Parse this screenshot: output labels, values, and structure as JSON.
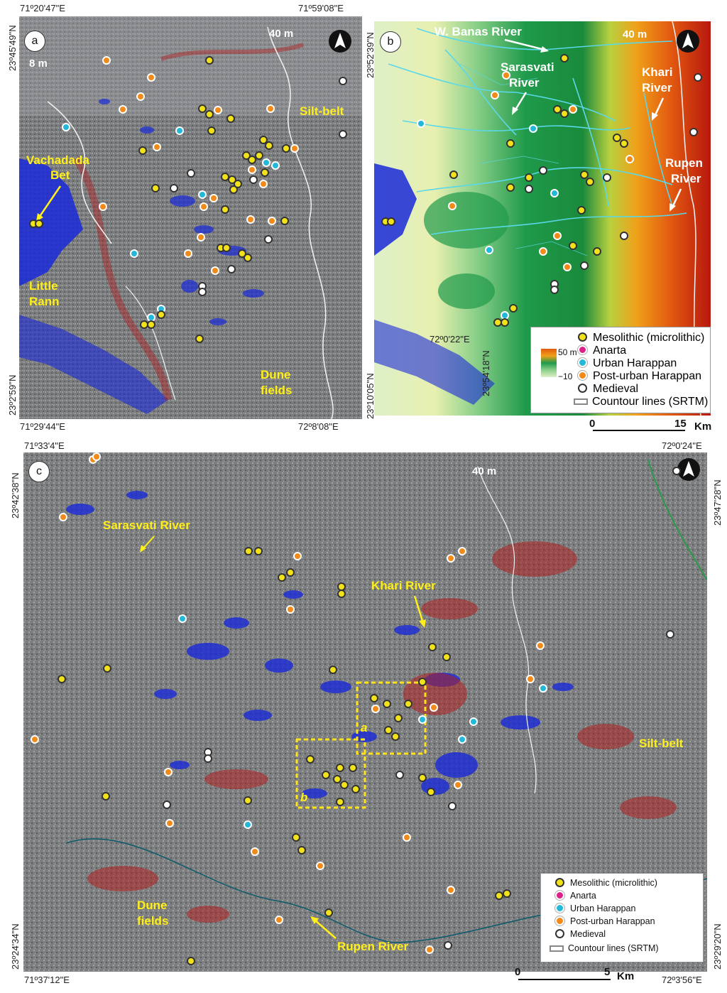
{
  "panel_a": {
    "letter": "a",
    "coords": {
      "top_left": "71º20'47\"E",
      "top_right": "71º59'08\"E",
      "bottom_left": "71º29'44\"E",
      "bottom_right": "72º8'08\"E",
      "left_top": "23º45'49\"N",
      "left_bottom": "23º2'59\"N",
      "right_top": "23º52'39\"N",
      "right_bottom": "23º10'05\"N"
    },
    "labels": {
      "c40": "40 m",
      "c8": "8 m",
      "silt": "Silt-belt",
      "vach1": "Vachadada",
      "vach2": "Bet",
      "rann1": "Little",
      "rann2": "Rann",
      "dune1": "Dune",
      "dune2": "fields"
    }
  },
  "panel_b": {
    "letter": "b",
    "labels": {
      "wbanas": "W. Banas River",
      "c40": "40 m",
      "sarasvati1": "Sarasvati",
      "sarasvati2": "River",
      "khari1": "Khari",
      "khari2": "River",
      "rupen1": "Rupen",
      "rupen2": "River",
      "coord_e": "72º0'22\"E",
      "coord_n": "23º54'18\"N"
    },
    "elev": {
      "top": "50 m",
      "bottom": "−10"
    },
    "legend": [
      "Mesolithic (microlithic)",
      "Anarta",
      "Urban Harappan",
      "Post-urban Harappan",
      "Medieval",
      "Countour lines (SRTM)"
    ],
    "scale": {
      "zero": "0",
      "max": "15",
      "unit": "Km"
    }
  },
  "panel_c": {
    "letter": "c",
    "coords": {
      "top_left": "71º33'4\"E",
      "top_right": "72º0'24\"E",
      "bottom_left": "71º37'12\"E",
      "bottom_right": "72º3'56\"E",
      "left_top": "23º42'38\"N",
      "left_bottom": "23º24'34\"N",
      "right_top": "23º47'28\"N",
      "right_bottom": "23º29'20\"N"
    },
    "labels": {
      "c40": "40 m",
      "sarasvati": "Sarasvati River",
      "khari": "Khari River",
      "silt": "Silt-belt",
      "dune1": "Dune",
      "dune2": "fields",
      "rupen": "Rupen River",
      "box_a": "a",
      "box_b": "b"
    },
    "legend": [
      "Mesolithic (microlithic)",
      "Anarta",
      "Urban Harappan",
      "Post-urban Harappan",
      "Medieval",
      "Countour lines (SRTM)"
    ],
    "scale": {
      "zero": "0",
      "max": "5",
      "unit": "Km"
    }
  },
  "colors": {
    "mesolithic": "#f2e21a",
    "anarta": "#e0208a",
    "urban": "#22b8d8",
    "post_urban": "#f28a1a",
    "medieval": "#ffffff",
    "water": "#1a2ad8",
    "red": "#b02020"
  }
}
